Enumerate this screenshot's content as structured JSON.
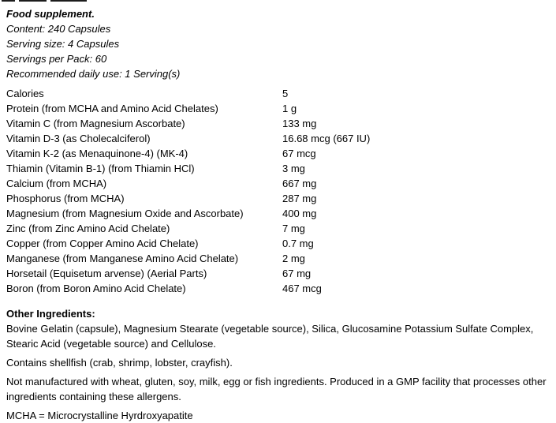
{
  "colors": {
    "text": "#000000",
    "background": "#ffffff"
  },
  "intro": {
    "title": "Food supplement.",
    "content": "Content: 240 Capsules",
    "serving_size": "Serving size: 4 Capsules",
    "servings_per_pack": "Servings per Pack: 60",
    "recommended_daily_use": "Recommended daily use: 1 Serving(s)"
  },
  "nutrition_table": {
    "rows": [
      {
        "label": "Calories",
        "value": "5"
      },
      {
        "label": "Protein (from MCHA and Amino Acid Chelates)",
        "value": "1 g"
      },
      {
        "label": "Vitamin C (from Magnesium Ascorbate)",
        "value": "133 mg"
      },
      {
        "label": "Vitamin D-3 (as Cholecalciferol)",
        "value": "16.68 mcg (667 IU)"
      },
      {
        "label": "Vitamin K-2 (as Menaquinone-4) (MK-4)",
        "value": "67 mcg"
      },
      {
        "label": "Thiamin (Vitamin B-1) (from Thiamin HCl)",
        "value": "3 mg"
      },
      {
        "label": "Calcium (from MCHA)",
        "value": "667 mg"
      },
      {
        "label": "Phosphorus (from MCHA)",
        "value": "287 mg"
      },
      {
        "label": "Magnesium (from Magnesium Oxide and Ascorbate)",
        "value": "400 mg"
      },
      {
        "label": "Zinc (from Zinc Amino Acid Chelate)",
        "value": "7 mg"
      },
      {
        "label": "Copper (from Copper Amino Acid Chelate)",
        "value": "0.7 mg"
      },
      {
        "label": "Manganese (from Manganese Amino Acid Chelate)",
        "value": "2 mg"
      },
      {
        "label": "Horsetail (Equisetum arvense) (Aerial Parts)",
        "value": "67 mg"
      },
      {
        "label": "Boron (from Boron Amino Acid Chelate)",
        "value": "467 mcg"
      }
    ]
  },
  "other_ingredients": {
    "heading": "Other Ingredients:",
    "text": "Bovine Gelatin (capsule), Magnesium Stearate (vegetable source), Silica, Glucosamine Potassium Sulfate Complex, Stearic Acid (vegetable source) and Cellulose."
  },
  "allergen_info": {
    "contains": "Contains shellfish (crab, shrimp, lobster, crayfish).",
    "not_manufactured": "Not manufactured with wheat, gluten, soy, milk, egg or fish ingredients. Produced in a GMP facility that processes other ingredients containing these allergens."
  },
  "abbreviation_note": "MCHA = Microcrystalline Hyrdroxyapatite"
}
